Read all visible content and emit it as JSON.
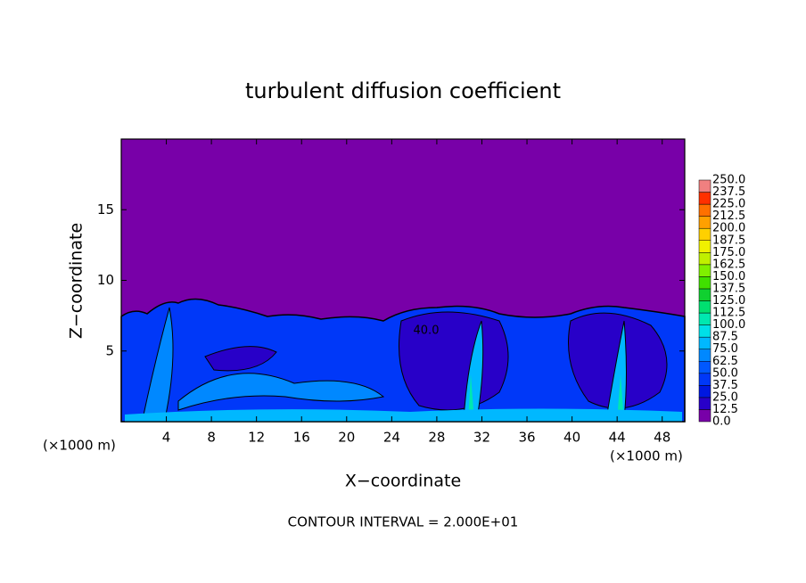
{
  "chart_data": {
    "type": "contour",
    "title": "turbulent diffusion coefficient",
    "xlabel": "X−coordinate",
    "ylabel": "Z−coordinate",
    "x_unit_left": "(×1000 m)",
    "x_unit_right": "(×1000 m)",
    "annotation": "CONTOUR INTERVAL = 2.000E+01",
    "contour_label": "40.0",
    "xlim": [
      0,
      50
    ],
    "xticks": [
      4,
      8,
      12,
      16,
      20,
      24,
      28,
      32,
      36,
      40,
      44,
      48
    ],
    "ylim": [
      0,
      20
    ],
    "yticks": [
      5,
      10,
      15
    ],
    "levels": [
      {
        "value": 0,
        "label": "0.0"
      },
      12.5,
      {
        "value": 25,
        "label": "25.0"
      },
      37.5,
      {
        "value": 50,
        "label": "50.0"
      },
      62.5,
      {
        "value": 75,
        "label": "75.0"
      },
      87.5,
      {
        "value": 100,
        "label": "100.0"
      },
      112.5,
      {
        "value": 125,
        "label": "125.0"
      },
      137.5,
      {
        "value": 150,
        "label": "150.0"
      },
      162.5,
      {
        "value": 175,
        "label": "175.0"
      },
      187.5,
      {
        "value": 200,
        "label": "200.0"
      },
      212.5,
      {
        "value": 225,
        "label": "225.0"
      },
      237.5,
      {
        "value": 250,
        "label": "250.0"
      }
    ],
    "colors": [
      "#7800a8",
      "#2800c8",
      "#0018e0",
      "#0038f8",
      "#0058ff",
      "#0088ff",
      "#00b8ff",
      "#00e0e8",
      "#00e8b0",
      "#00e070",
      "#10d030",
      "#40e000",
      "#80f000",
      "#c0f000",
      "#f0f000",
      "#ffd000",
      "#ffa000",
      "#ff7000",
      "#ff3000",
      "#f08080"
    ]
  }
}
